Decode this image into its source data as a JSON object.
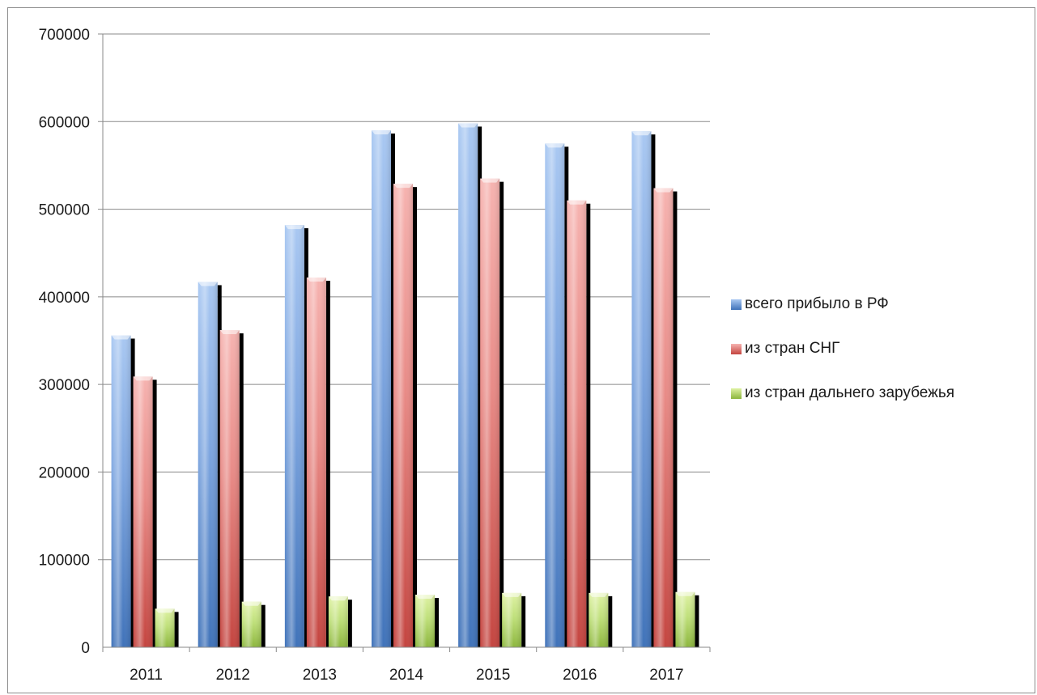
{
  "chart_data": {
    "type": "bar",
    "title": "",
    "xlabel": "",
    "ylabel": "",
    "categories": [
      "2011",
      "2012",
      "2013",
      "2014",
      "2015",
      "2016",
      "2017"
    ],
    "ylim": [
      0,
      700000
    ],
    "yticks": [
      "0",
      "100000",
      "200000",
      "300000",
      "400000",
      "500000",
      "600000",
      "700000"
    ],
    "grid": true,
    "legend_position": "right",
    "series": [
      {
        "name": "всего прибыло в РФ",
        "values": [
          356000,
          417000,
          482000,
          590000,
          598000,
          575000,
          589000
        ],
        "color": "#4f81bd"
      },
      {
        "name": "из стран СНГ",
        "values": [
          309000,
          362000,
          422000,
          529000,
          535000,
          510000,
          524000
        ],
        "color": "#c0504d"
      },
      {
        "name": "из стран дальнего зарубежья",
        "values": [
          44000,
          52000,
          58000,
          60000,
          62000,
          62000,
          63000
        ],
        "color": "#9bbb59"
      }
    ]
  }
}
